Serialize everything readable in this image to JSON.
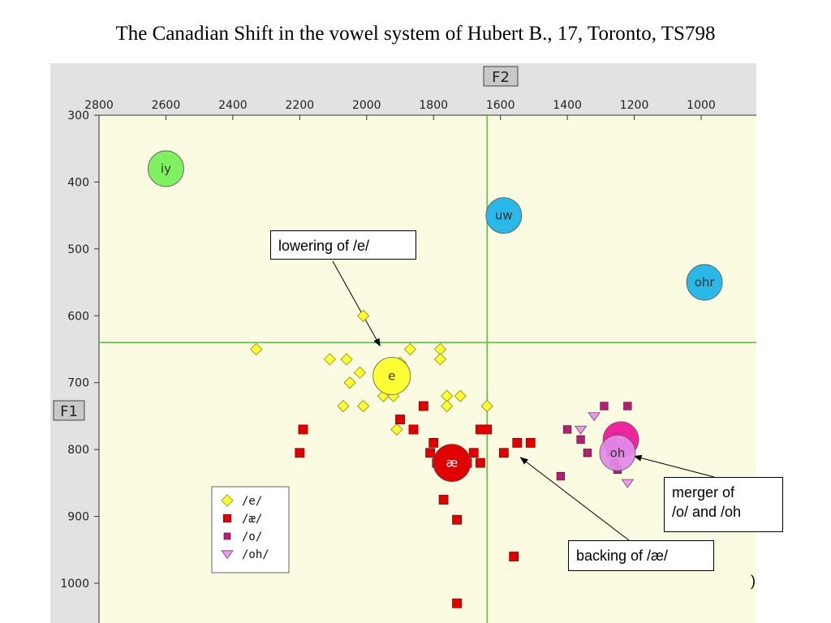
{
  "title": "The Canadian Shift in the vowel system of Hubert B., 17, Toronto, TS798",
  "colors": {
    "plot_bg": "#fbfbe1",
    "frame_bg": "#e2e2e2",
    "crosshair": "#5fb84a",
    "e": "#ffff33",
    "ae": "#e00000",
    "o": "#b0207a",
    "oh": "#e79ce8",
    "iy": "#7ff060",
    "uw": "#2ab8e8",
    "ohr": "#2ab8e8",
    "mean_o": "#ef1599",
    "mean_oh": "#e38ae8"
  },
  "chart_data": {
    "type": "scatter",
    "x_axis": {
      "label": "F2",
      "range": [
        2800,
        900
      ],
      "reversed": true,
      "position": "top",
      "ticks": [
        2800,
        2600,
        2400,
        2200,
        2000,
        1800,
        1600,
        1400,
        1200,
        1000
      ]
    },
    "y_axis": {
      "label": "F1",
      "range": [
        300,
        1060
      ],
      "reversed": true,
      "ticks": [
        300,
        400,
        500,
        600,
        700,
        800,
        900,
        1000
      ]
    },
    "crosshair": {
      "x": 1640,
      "y": 640
    },
    "series": [
      {
        "name": "/e/",
        "marker": "diamond",
        "color_key": "e",
        "points": [
          [
            2330,
            650
          ],
          [
            2010,
            600
          ],
          [
            2060,
            665
          ],
          [
            2110,
            665
          ],
          [
            2050,
            700
          ],
          [
            2020,
            685
          ],
          [
            1940,
            685
          ],
          [
            1900,
            670
          ],
          [
            1870,
            650
          ],
          [
            1780,
            650
          ],
          [
            1780,
            665
          ],
          [
            1890,
            690
          ],
          [
            2010,
            735
          ],
          [
            2070,
            735
          ],
          [
            1950,
            720
          ],
          [
            1920,
            720
          ],
          [
            1760,
            720
          ],
          [
            1720,
            720
          ],
          [
            1760,
            735
          ],
          [
            1910,
            770
          ],
          [
            1640,
            735
          ]
        ]
      },
      {
        "name": "/æ/",
        "marker": "square",
        "color_key": "ae",
        "points": [
          [
            2190,
            770
          ],
          [
            2200,
            805
          ],
          [
            1900,
            755
          ],
          [
            1860,
            770
          ],
          [
            1830,
            735
          ],
          [
            1800,
            790
          ],
          [
            1810,
            805
          ],
          [
            1790,
            820
          ],
          [
            1680,
            805
          ],
          [
            1700,
            820
          ],
          [
            1660,
            820
          ],
          [
            1640,
            770
          ],
          [
            1660,
            770
          ],
          [
            1590,
            805
          ],
          [
            1550,
            790
          ],
          [
            1510,
            790
          ],
          [
            1770,
            875
          ],
          [
            1730,
            905
          ],
          [
            1560,
            960
          ],
          [
            1730,
            1030
          ]
        ]
      },
      {
        "name": "/o/",
        "marker": "square",
        "color_key": "o",
        "points": [
          [
            1290,
            735
          ],
          [
            1220,
            735
          ],
          [
            1400,
            770
          ],
          [
            1360,
            785
          ],
          [
            1340,
            805
          ],
          [
            1270,
            805
          ],
          [
            1230,
            790
          ],
          [
            1240,
            800
          ],
          [
            1260,
            820
          ],
          [
            1250,
            830
          ],
          [
            1420,
            840
          ]
        ]
      },
      {
        "name": "/oh/",
        "marker": "triangle-down",
        "color_key": "oh",
        "points": [
          [
            1320,
            750
          ],
          [
            1360,
            770
          ],
          [
            1250,
            780
          ],
          [
            1270,
            790
          ],
          [
            1230,
            795
          ],
          [
            1260,
            805
          ],
          [
            1220,
            850
          ]
        ]
      }
    ],
    "means": [
      {
        "label": "iy",
        "f2": 2600,
        "f1": 380,
        "color_key": "iy"
      },
      {
        "label": "uw",
        "f2": 1590,
        "f1": 450,
        "color_key": "uw"
      },
      {
        "label": "ohr",
        "f2": 990,
        "f1": 550,
        "color_key": "ohr"
      },
      {
        "label": "e",
        "f2": 1925,
        "f1": 690,
        "color_key": "e"
      },
      {
        "label": "æ",
        "f2": 1745,
        "f1": 820,
        "color_key": "ae"
      },
      {
        "label": "o",
        "f2": 1240,
        "f1": 785,
        "color_key": "mean_o"
      },
      {
        "label": "oh",
        "f2": 1250,
        "f1": 805,
        "color_key": "mean_oh"
      }
    ],
    "annotations": [
      {
        "text": "lowering of /e/",
        "target": [
          1960,
          645
        ]
      },
      {
        "text": "backing of /æ/",
        "target": [
          1540,
          812
        ]
      },
      {
        "text": "merger of /o/ and /oh",
        "target": [
          1200,
          810
        ]
      }
    ]
  },
  "annotations": {
    "lowering": "lowering of /e/",
    "backing": "backing of /æ/",
    "merger_line1": "merger of",
    "merger_line2": "/o/ and /oh"
  },
  "cut_off_text": ")"
}
